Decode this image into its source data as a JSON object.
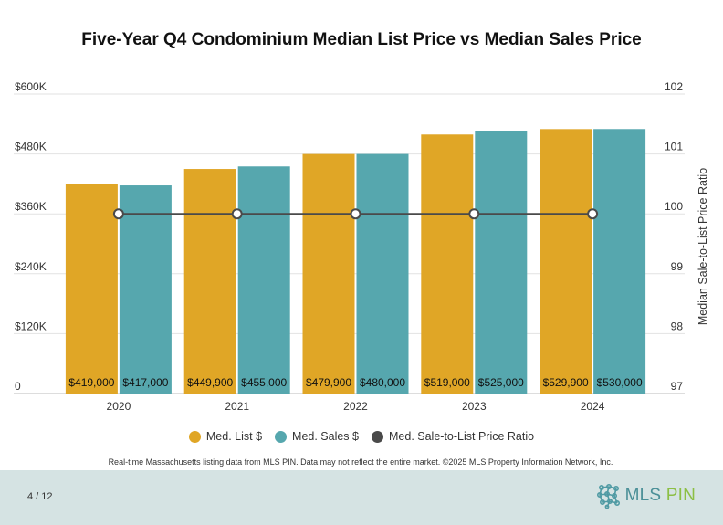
{
  "chart_data": {
    "type": "bar",
    "title": "Five-Year Q4 Condominium Median List Price vs Median Sales Price",
    "categories": [
      "2020",
      "2021",
      "2022",
      "2023",
      "2024"
    ],
    "series": [
      {
        "name": "Med. List $",
        "color": "#e0a626",
        "values": [
          419000,
          449900,
          479900,
          519000,
          529900
        ],
        "labels": [
          "$419,000",
          "$449,900",
          "$479,900",
          "$519,000",
          "$529,900"
        ]
      },
      {
        "name": "Med. Sales $",
        "color": "#56a7ae",
        "values": [
          417000,
          455000,
          480000,
          525000,
          530000
        ],
        "labels": [
          "$417,000",
          "$455,000",
          "$480,000",
          "$525,000",
          "$530,000"
        ]
      }
    ],
    "line_series": {
      "name": "Med. Sale-to-List Price Ratio",
      "color": "#4a4a4a",
      "values": [
        100,
        100,
        100,
        100,
        100
      ],
      "axis": "right"
    },
    "left_axis": {
      "min": 0,
      "max": 600000,
      "ticks": [
        "0",
        "$120K",
        "$240K",
        "$360K",
        "$480K",
        "$600K"
      ]
    },
    "right_axis": {
      "min": 97,
      "max": 102,
      "label": "Median Sale-to-List Price Ratio",
      "ticks": [
        "97",
        "98",
        "99",
        "100",
        "101",
        "102"
      ]
    },
    "grid": true,
    "legend_position": "bottom"
  },
  "footnote": "Real-time Massachusetts listing data from MLS PIN. Data may not reflect the entire market. ©2025 MLS Property Information Network, Inc.",
  "footer": {
    "page": "4 / 12",
    "logo_mls": "MLS",
    "logo_pin": "PIN"
  }
}
